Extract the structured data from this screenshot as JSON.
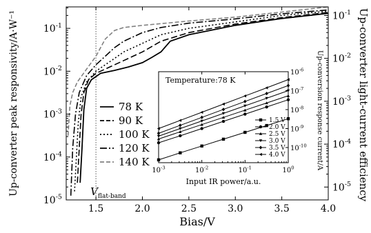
{
  "chart_data": [
    {
      "id": "main",
      "type": "line",
      "xlabel": "Bias/V",
      "ylabel_left": "Up-converter peak responsivity/A·W⁻¹",
      "ylabel_right": "Up-converter light-current efficiency",
      "xlim": [
        1.18,
        4.0
      ],
      "ylim_left_log10": [
        -5,
        -0.5
      ],
      "ylim_right_log10": [
        -5.3,
        -0.8
      ],
      "y_scale": "log",
      "x_ticks": [
        {
          "v": 1.5,
          "label": "1.5"
        },
        {
          "v": 2.0,
          "label": "2.0"
        },
        {
          "v": 2.5,
          "label": "2.5"
        },
        {
          "v": 3.0,
          "label": "3.0"
        },
        {
          "v": 3.5,
          "label": "3.5"
        },
        {
          "v": 4.0,
          "label": "4.0"
        }
      ],
      "y_left_ticks": [
        {
          "e": -5,
          "base": "10",
          "exp": "-5"
        },
        {
          "e": -4,
          "base": "10",
          "exp": "-4"
        },
        {
          "e": -3,
          "base": "10",
          "exp": "-3"
        },
        {
          "e": -2,
          "base": "10",
          "exp": "-2"
        },
        {
          "e": -1,
          "base": "10",
          "exp": "-1"
        }
      ],
      "y_right_ticks": [
        {
          "e": -5,
          "base": "10",
          "exp": "-5"
        },
        {
          "e": -4,
          "base": "10",
          "exp": "-4"
        },
        {
          "e": -3,
          "base": "10",
          "exp": "-3"
        },
        {
          "e": -2,
          "base": "10",
          "exp": "-2"
        },
        {
          "e": -1,
          "base": "10",
          "exp": "-1"
        }
      ],
      "flat_band": {
        "x": 1.5,
        "label_main": "V",
        "label_sub": "flat-band"
      },
      "series": [
        {
          "name": "78 K",
          "style": "solid",
          "color": "#000000",
          "points": [
            [
              1.33,
              -4.6
            ],
            [
              1.35,
              -3.8
            ],
            [
              1.37,
              -2.9
            ],
            [
              1.4,
              -2.4
            ],
            [
              1.45,
              -2.2
            ],
            [
              1.55,
              -2.05
            ],
            [
              1.7,
              -1.98
            ],
            [
              1.85,
              -1.9
            ],
            [
              2.0,
              -1.8
            ],
            [
              2.1,
              -1.68
            ],
            [
              2.2,
              -1.55
            ],
            [
              2.3,
              -1.3
            ],
            [
              2.5,
              -1.15
            ],
            [
              3.0,
              -0.93
            ],
            [
              3.5,
              -0.77
            ],
            [
              4.0,
              -0.65
            ]
          ]
        },
        {
          "name": "90 K",
          "style": "dashed",
          "color": "#000000",
          "points": [
            [
              1.3,
              -4.6
            ],
            [
              1.32,
              -3.8
            ],
            [
              1.34,
              -3.0
            ],
            [
              1.37,
              -2.5
            ],
            [
              1.42,
              -2.2
            ],
            [
              1.5,
              -2.05
            ],
            [
              1.6,
              -1.95
            ],
            [
              1.7,
              -1.85
            ],
            [
              1.8,
              -1.75
            ],
            [
              2.0,
              -1.55
            ],
            [
              2.2,
              -1.3
            ],
            [
              2.5,
              -1.1
            ],
            [
              3.0,
              -0.9
            ],
            [
              3.5,
              -0.75
            ],
            [
              4.0,
              -0.63
            ]
          ]
        },
        {
          "name": "100 K",
          "style": "dotted",
          "color": "#000000",
          "points": [
            [
              1.27,
              -4.8
            ],
            [
              1.29,
              -4.0
            ],
            [
              1.31,
              -3.2
            ],
            [
              1.34,
              -2.6
            ],
            [
              1.4,
              -2.25
            ],
            [
              1.5,
              -2.0
            ],
            [
              1.6,
              -1.85
            ],
            [
              1.7,
              -1.7
            ],
            [
              1.8,
              -1.55
            ],
            [
              2.0,
              -1.35
            ],
            [
              2.2,
              -1.15
            ],
            [
              2.5,
              -1.0
            ],
            [
              3.0,
              -0.85
            ],
            [
              3.5,
              -0.7
            ],
            [
              4.0,
              -0.6
            ]
          ]
        },
        {
          "name": "120 K",
          "style": "dashdot",
          "color": "#000000",
          "points": [
            [
              1.23,
              -4.9
            ],
            [
              1.25,
              -3.8
            ],
            [
              1.28,
              -3.0
            ],
            [
              1.32,
              -2.5
            ],
            [
              1.4,
              -2.1
            ],
            [
              1.5,
              -1.85
            ],
            [
              1.6,
              -1.65
            ],
            [
              1.7,
              -1.45
            ],
            [
              1.8,
              -1.3
            ],
            [
              2.0,
              -1.1
            ],
            [
              2.2,
              -0.98
            ],
            [
              2.5,
              -0.88
            ],
            [
              3.0,
              -0.78
            ],
            [
              3.5,
              -0.66
            ],
            [
              4.0,
              -0.57
            ]
          ]
        },
        {
          "name": "140 K",
          "style": "dashgray",
          "color": "#808080",
          "points": [
            [
              1.2,
              -3.5
            ],
            [
              1.22,
              -2.8
            ],
            [
              1.25,
              -2.5
            ],
            [
              1.3,
              -2.25
            ],
            [
              1.4,
              -1.95
            ],
            [
              1.5,
              -1.65
            ],
            [
              1.6,
              -1.25
            ],
            [
              1.7,
              -1.05
            ],
            [
              1.8,
              -0.98
            ],
            [
              2.0,
              -0.93
            ],
            [
              2.5,
              -0.83
            ],
            [
              3.0,
              -0.74
            ],
            [
              3.5,
              -0.62
            ],
            [
              4.0,
              -0.5
            ]
          ]
        }
      ]
    },
    {
      "id": "inset",
      "type": "line",
      "title": "Temperature:78 K",
      "xlabel": "Input IR power/a.u.",
      "ylabel": "Up-conversion response current/A",
      "x_scale": "log",
      "y_scale": "log",
      "xlim_log10": [
        -3,
        0
      ],
      "ylim_log10": [
        -10.8,
        -6
      ],
      "x_ticks": [
        {
          "e": -3,
          "base": "10",
          "exp": "-3"
        },
        {
          "e": -2,
          "base": "10",
          "exp": "-2"
        },
        {
          "e": -1,
          "base": "10",
          "exp": "-1"
        },
        {
          "e": 0,
          "base": "10",
          "exp": "0"
        }
      ],
      "y_ticks": [
        {
          "e": -10,
          "base": "10",
          "exp": "-10"
        },
        {
          "e": -9,
          "base": "10",
          "exp": "-9"
        },
        {
          "e": -8,
          "base": "10",
          "exp": "-8"
        },
        {
          "e": -7,
          "base": "10",
          "exp": "-7"
        },
        {
          "e": -6,
          "base": "10",
          "exp": "-6"
        }
      ],
      "series": [
        {
          "name": "1.5 V",
          "marker": "square",
          "points": [
            [
              -3,
              -10.65
            ],
            [
              -2.5,
              -10.28
            ],
            [
              -2,
              -9.92
            ],
            [
              -1.5,
              -9.56
            ],
            [
              -1,
              -9.2
            ],
            [
              -0.5,
              -8.84
            ],
            [
              0,
              -8.48
            ]
          ]
        },
        {
          "name": "2.0 V",
          "marker": "circle",
          "points": [
            [
              -3,
              -9.75
            ],
            [
              -2.5,
              -9.38
            ],
            [
              -2,
              -9.0
            ],
            [
              -1.5,
              -8.62
            ],
            [
              -1,
              -8.24
            ],
            [
              -0.5,
              -7.86
            ],
            [
              0,
              -7.48
            ]
          ]
        },
        {
          "name": "2.5 V",
          "marker": "triangle-up",
          "points": [
            [
              -3,
              -9.55
            ],
            [
              -2.5,
              -9.17
            ],
            [
              -2,
              -8.79
            ],
            [
              -1.5,
              -8.41
            ],
            [
              -1,
              -8.03
            ],
            [
              -0.5,
              -7.65
            ],
            [
              0,
              -7.27
            ]
          ]
        },
        {
          "name": "3.0 V",
          "marker": "triangle-down",
          "points": [
            [
              -3,
              -9.4
            ],
            [
              -2.5,
              -9.0
            ],
            [
              -2,
              -8.6
            ],
            [
              -1.5,
              -8.2
            ],
            [
              -1,
              -7.8
            ],
            [
              -0.5,
              -7.4
            ],
            [
              0,
              -7.0
            ]
          ]
        },
        {
          "name": "3.5 V",
          "marker": "diamond",
          "points": [
            [
              -3,
              -9.25
            ],
            [
              -2.5,
              -8.83
            ],
            [
              -2,
              -8.41
            ],
            [
              -1.5,
              -7.99
            ],
            [
              -1,
              -7.57
            ],
            [
              -0.5,
              -7.15
            ],
            [
              0,
              -6.73
            ]
          ]
        },
        {
          "name": "4.0 V",
          "marker": "triangle-left",
          "points": [
            [
              -3,
              -9.0
            ],
            [
              -2.5,
              -8.57
            ],
            [
              -2,
              -8.14
            ],
            [
              -1.5,
              -7.71
            ],
            [
              -1,
              -7.28
            ],
            [
              -0.5,
              -6.85
            ],
            [
              0,
              -6.42
            ]
          ]
        }
      ]
    }
  ]
}
